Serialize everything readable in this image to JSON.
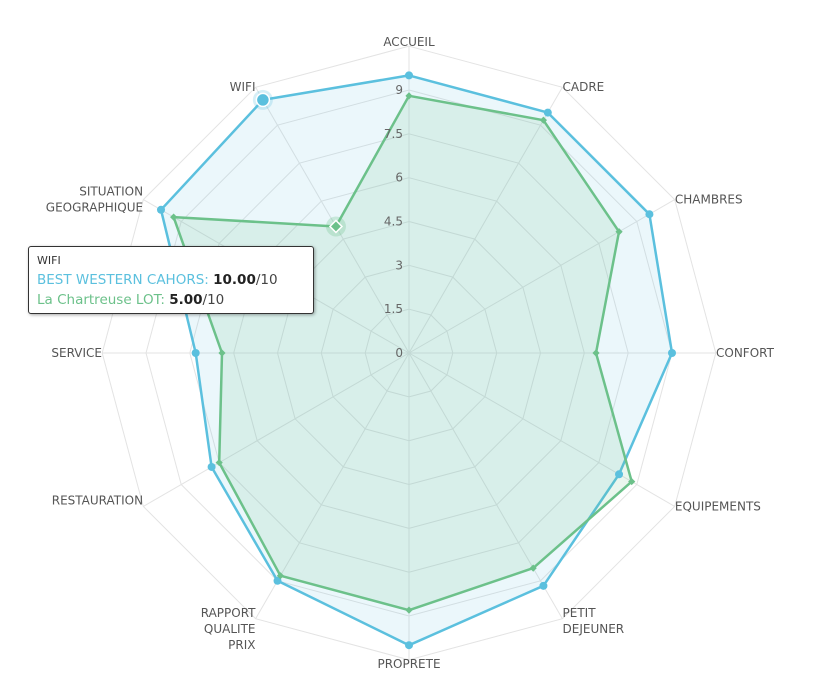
{
  "chart_data": {
    "type": "radar",
    "categories": [
      "ACCUEIL",
      "CADRE",
      "CHAMBRES",
      "CONFORT",
      "EQUIPEMENTS",
      "PETIT DEJEUNER",
      "PROPRETE",
      "RAPPORT QUALITE PRIX",
      "RESTAURATION",
      "SERVICE",
      "SITUATION GEOGRAPHIQUE",
      "WIFI"
    ],
    "category_lines": [
      [
        "ACCUEIL"
      ],
      [
        "CADRE"
      ],
      [
        "CHAMBRES"
      ],
      [
        "CONFORT"
      ],
      [
        "EQUIPEMENTS"
      ],
      [
        "PETIT",
        "DEJEUNER"
      ],
      [
        "PROPRETE"
      ],
      [
        "RAPPORT",
        "QUALITE",
        "PRIX"
      ],
      [
        "RESTAURATION"
      ],
      [
        "SERVICE"
      ],
      [
        "SITUATION",
        "GEOGRAPHIQUE"
      ],
      [
        "WIFI"
      ]
    ],
    "series": [
      {
        "name": "BEST WESTERN CAHORS",
        "color": "#5bc0de",
        "values": [
          9.5,
          9.5,
          9.5,
          9.0,
          8.3,
          9.2,
          10.0,
          9.0,
          7.8,
          7.3,
          9.8,
          10.0
        ]
      },
      {
        "name": "La Chartreuse LOT",
        "color": "#6cc18a",
        "values": [
          8.8,
          9.2,
          8.3,
          6.4,
          8.8,
          8.5,
          8.8,
          8.8,
          7.5,
          6.4,
          9.3,
          5.0
        ]
      }
    ],
    "ylim": [
      0,
      9
    ],
    "tick_values": [
      0,
      1.5,
      3,
      4.5,
      6,
      7.5,
      9
    ],
    "tick_labels": [
      "0",
      "1.5",
      "3",
      "4.5",
      "6",
      "7.5",
      "9"
    ]
  },
  "tooltip": {
    "title": "WIFI",
    "rows": [
      {
        "name": "BEST WESTERN CAHORS:",
        "value": "10.00",
        "suffix": "/10"
      },
      {
        "name": "La Chartreuse LOT:",
        "value": "5.00",
        "suffix": "/10"
      }
    ]
  }
}
